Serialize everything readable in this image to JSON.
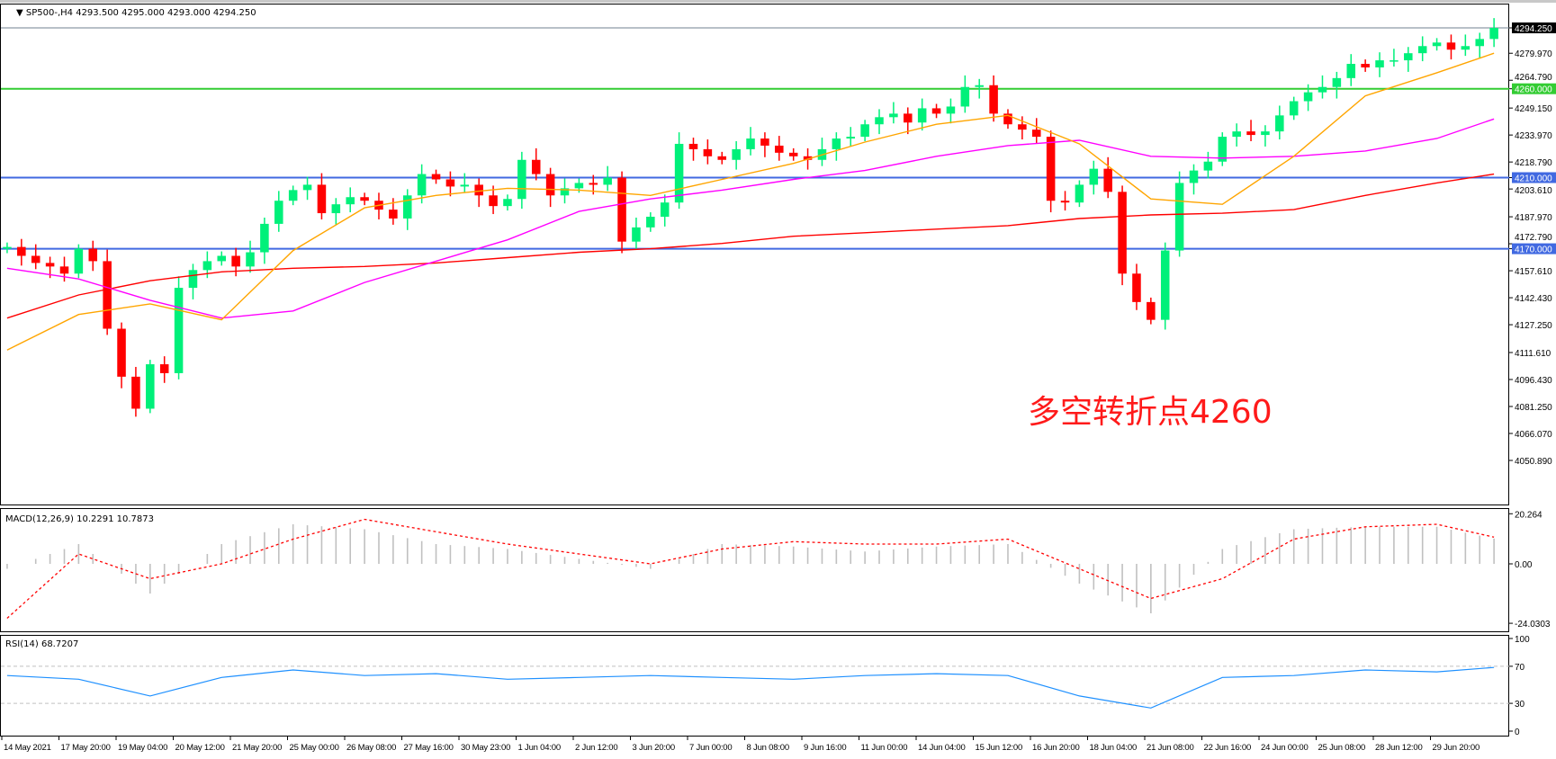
{
  "header": {
    "symbol": "SP500-,H4",
    "ohlc": "4293.500 4295.000 4293.000 4294.250"
  },
  "annotation": {
    "text": "多空转折点4260",
    "color": "#ff1a1a"
  },
  "colors": {
    "bull": "#00f07a",
    "bear": "#ff0000",
    "ma_fast": "#ffa500",
    "ma_mid": "#ff00ff",
    "ma_slow": "#ff0000",
    "level_4260": "#33cc33",
    "level_blue": "#4169e1",
    "macd_hist": "#c0c0c0",
    "macd_signal": "#ff0000",
    "rsi": "#1e90ff"
  },
  "chart_data": [
    {
      "type": "candlestick",
      "title": "SP500-,H4",
      "price_axis_labels": [
        "4294.250",
        "4279.970",
        "4264.790",
        "4260.000",
        "4249.150",
        "4233.970",
        "4218.790",
        "4210.000",
        "4203.610",
        "4187.970",
        "4172.790",
        "4170.000",
        "4157.610",
        "4142.430",
        "4127.250",
        "4111.610",
        "4096.430",
        "4081.250",
        "4066.070",
        "4050.890"
      ],
      "ylim": [
        4050.89,
        4294.25
      ],
      "time_axis_labels": [
        "14 May 2021",
        "17 May 20:00",
        "19 May 04:00",
        "20 May 12:00",
        "21 May 20:00",
        "25 May 00:00",
        "26 May 08:00",
        "27 May 16:00",
        "30 May 23:00",
        "1 Jun 04:00",
        "2 Jun 12:00",
        "3 Jun 20:00",
        "7 Jun 00:00",
        "8 Jun 08:00",
        "9 Jun 16:00",
        "11 Jun 00:00",
        "14 Jun 04:00",
        "15 Jun 12:00",
        "16 Jun 20:00",
        "18 Jun 04:00",
        "21 Jun 08:00",
        "22 Jun 16:00",
        "24 Jun 00:00",
        "25 Jun 08:00",
        "28 Jun 12:00",
        "29 Jun 20:00"
      ],
      "close": [
        4171,
        4166,
        4162,
        4160,
        4156,
        4170,
        4163,
        4125,
        4098,
        4080,
        4105,
        4100,
        4148,
        4158,
        4163,
        4166,
        4160,
        4168,
        4184,
        4197,
        4203,
        4206,
        4190,
        4195,
        4199,
        4197,
        4192,
        4187,
        4200,
        4212,
        4209,
        4205,
        4206,
        4200,
        4194,
        4198,
        4220,
        4212,
        4200,
        4204,
        4207,
        4206,
        4210,
        4174,
        4182,
        4188,
        4196,
        4229,
        4226,
        4222,
        4220,
        4226,
        4232,
        4228,
        4224,
        4222,
        4220,
        4226,
        4232,
        4233,
        4240,
        4244,
        4246,
        4241,
        4249,
        4246,
        4250,
        4261,
        4262,
        4246,
        4240,
        4237,
        4233,
        4197,
        4196,
        4206,
        4215,
        4202,
        4156,
        4140,
        4130,
        4169,
        4207,
        4214,
        4219,
        4233,
        4236,
        4234,
        4236,
        4245,
        4253,
        4258,
        4261,
        4266,
        4274,
        4272,
        4276,
        4276,
        4280,
        4284,
        4286,
        4282,
        4284,
        4288,
        4294.25
      ],
      "last_price": 4294.25,
      "moving_averages": {
        "fast": [
          4113,
          4133,
          4139,
          4130,
          4169,
          4193,
          4200,
          4204,
          4203,
          4200,
          4209,
          4218,
          4230,
          4240,
          4245,
          4229,
          4198,
          4195,
          4222,
          4256,
          4269,
          4280
        ],
        "mid": [
          4159,
          4153,
          4141,
          4131,
          4135,
          4151,
          4163,
          4175,
          4191,
          4198,
          4203,
          4209,
          4214,
          4222,
          4228,
          4231,
          4222,
          4221,
          4222,
          4225,
          4232,
          4243
        ],
        "slow": [
          4131,
          4144,
          4152,
          4157,
          4159,
          4160,
          4162,
          4165,
          4168,
          4170,
          4173,
          4177,
          4179,
          4181,
          4183,
          4187,
          4189,
          4190,
          4192,
          4200,
          4207,
          4212
        ]
      },
      "horizontal_levels": [
        {
          "value": 4260,
          "label": "4260.000",
          "color": "#33cc33"
        },
        {
          "value": 4210,
          "label": "4210.000",
          "color": "#4169e1"
        },
        {
          "value": 4170,
          "label": "4170.000",
          "color": "#4169e1"
        }
      ]
    },
    {
      "type": "bar",
      "title": "MACD(12,26,9) 10.2291 10.7873",
      "axis_labels": [
        "20.264",
        "0.00",
        "-24.0303"
      ],
      "ylim": [
        -24.0303,
        20.264
      ],
      "macd": [
        -2,
        8,
        -12,
        8,
        16,
        14,
        8,
        6,
        2,
        -2,
        8,
        7,
        5,
        7,
        8,
        -8,
        -20,
        6,
        14,
        15,
        15,
        10.2291
      ],
      "signal": [
        -22,
        4,
        -6,
        0,
        10,
        18,
        13,
        8,
        4,
        0,
        6,
        9,
        8,
        8,
        10,
        -2,
        -14,
        -6,
        10,
        15,
        16,
        10.7873
      ]
    },
    {
      "type": "line",
      "title": "RSI(14) 68.7207",
      "axis_labels": [
        "100",
        "70",
        "30",
        "0"
      ],
      "ylim": [
        0,
        100
      ],
      "levels": [
        70,
        30
      ],
      "values": [
        60,
        56,
        38,
        58,
        66,
        60,
        62,
        56,
        58,
        60,
        58,
        56,
        60,
        62,
        60,
        38,
        25,
        58,
        60,
        66,
        64,
        68.7207
      ]
    }
  ]
}
